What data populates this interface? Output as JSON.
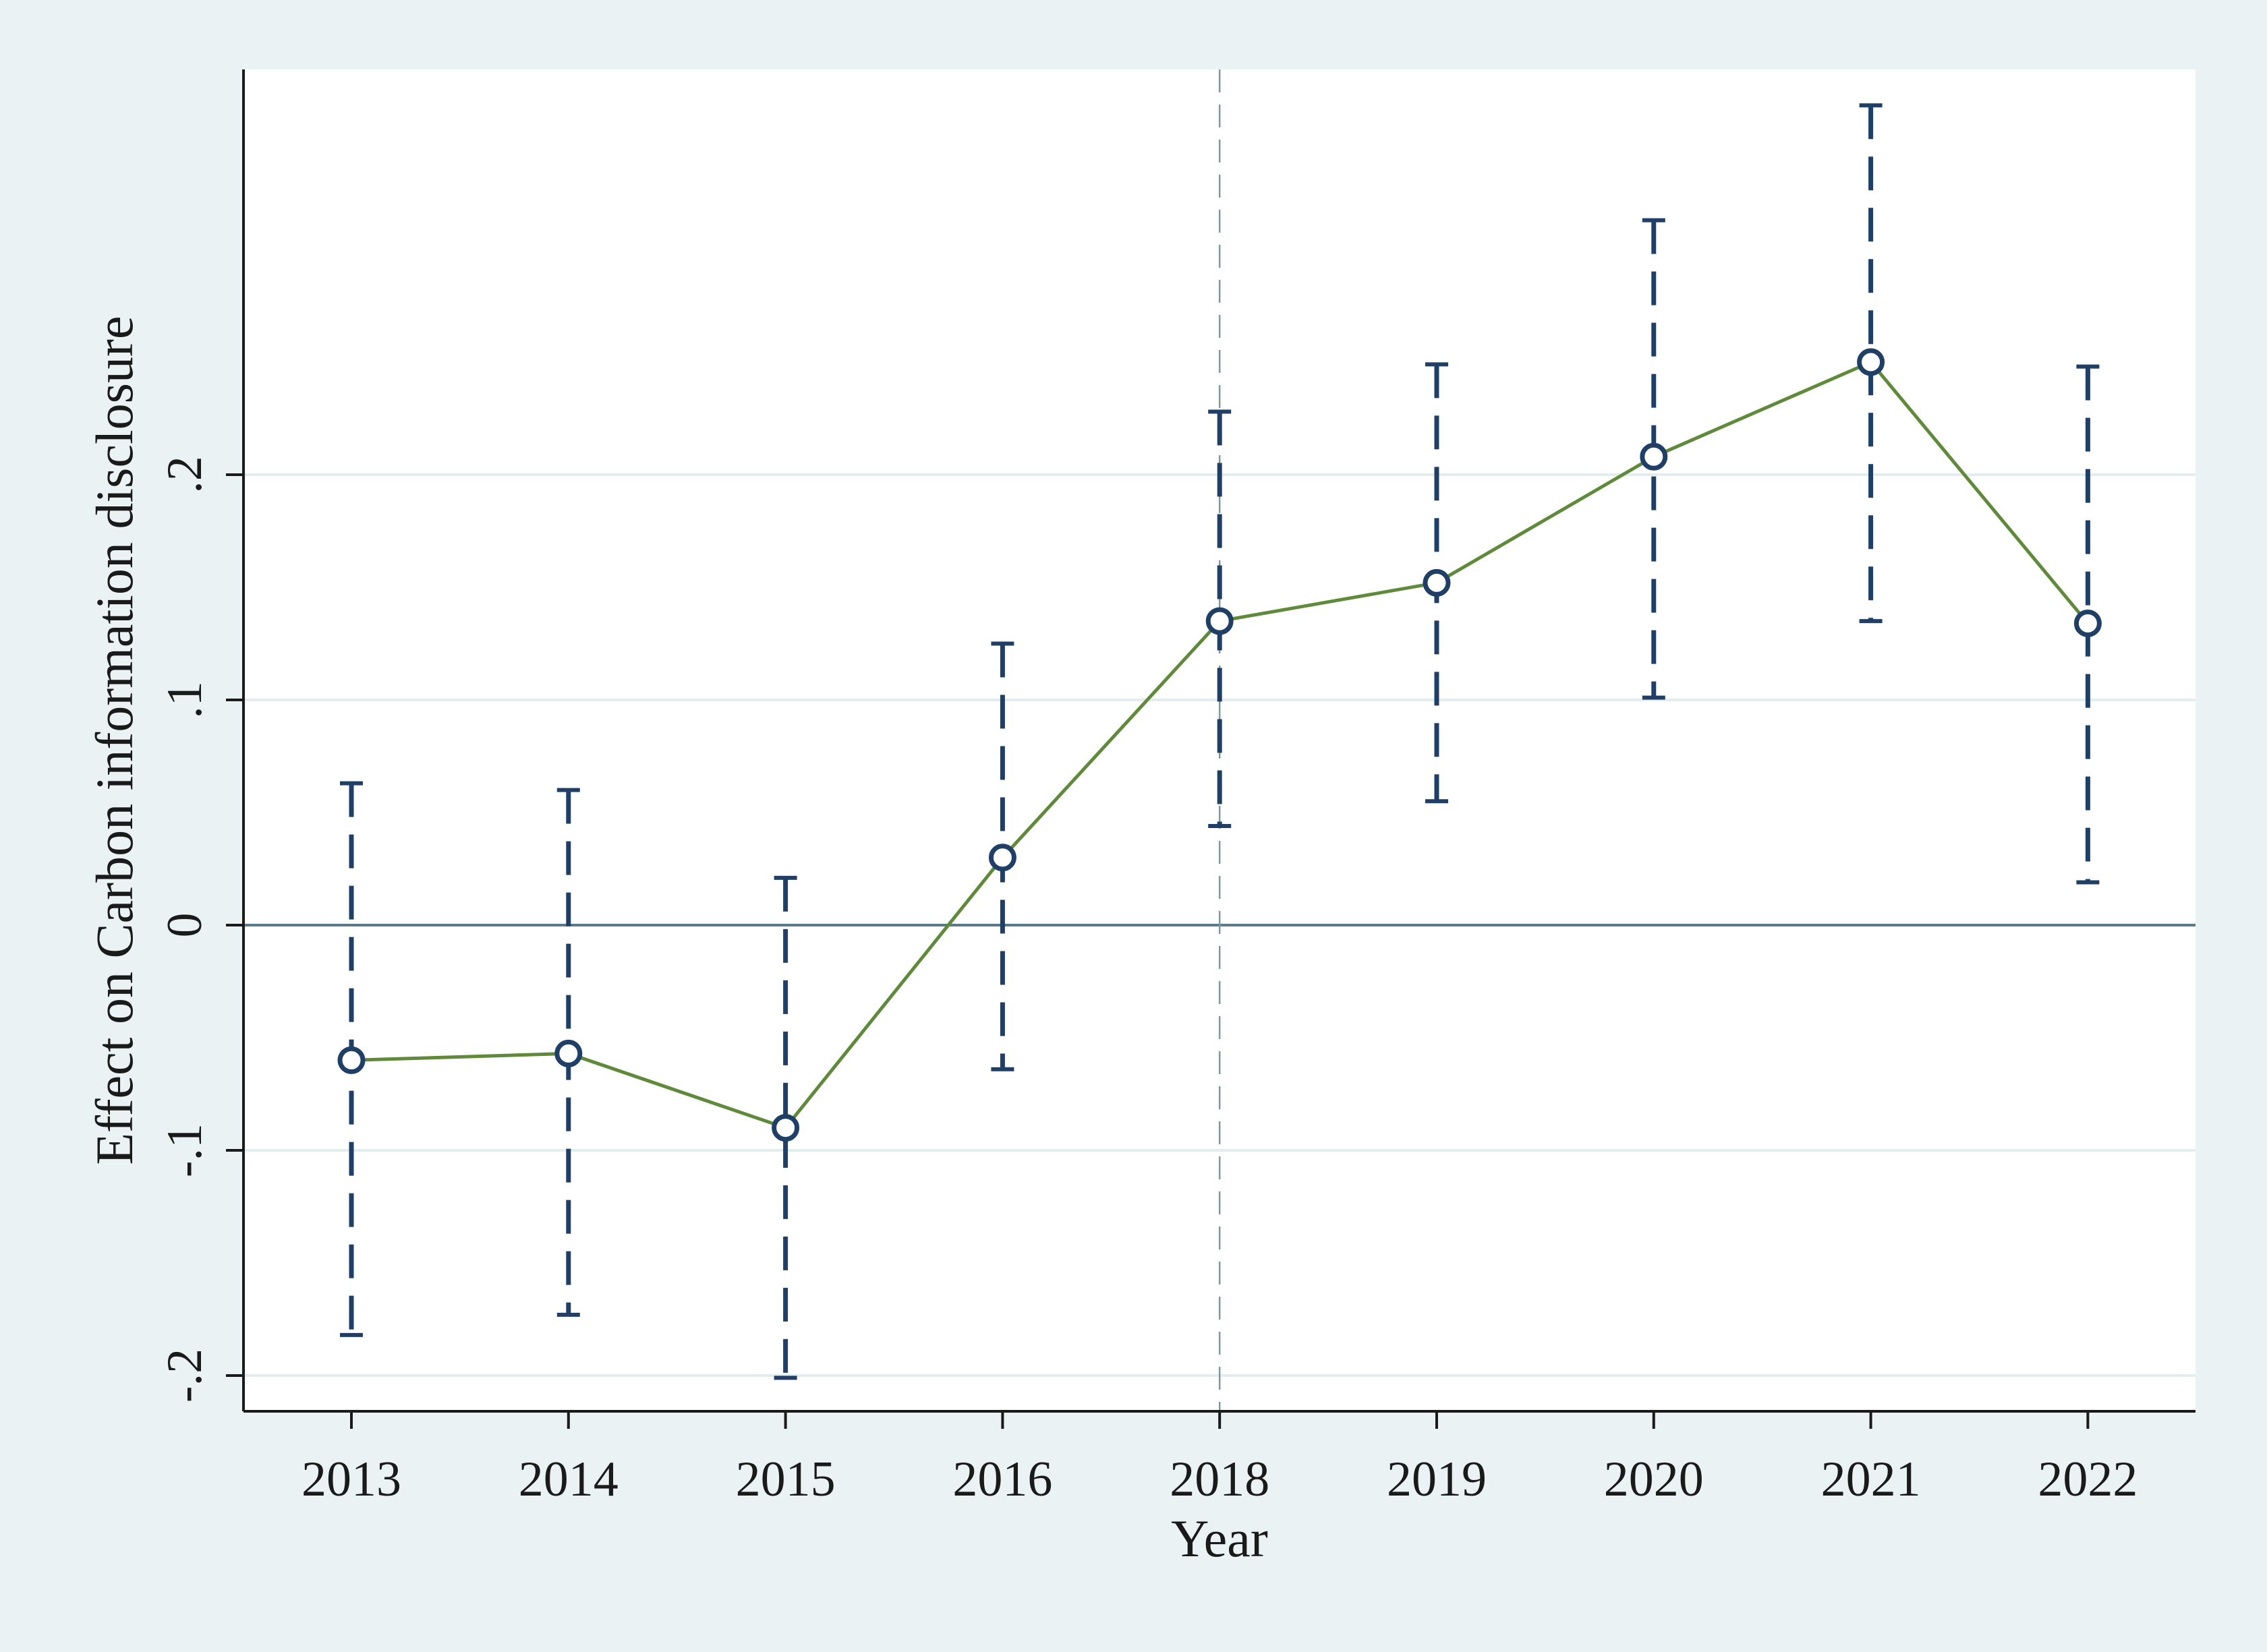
{
  "chart_data": {
    "type": "line",
    "xlabel": "Year",
    "ylabel": "Effect on Carbon information disclosure",
    "categories": [
      "2013",
      "2014",
      "2015",
      "2016",
      "2018",
      "2019",
      "2020",
      "2021",
      "2022"
    ],
    "ylim": [
      -0.215,
      0.38
    ],
    "yticks": [
      -0.2,
      -0.1,
      0,
      0.1,
      0.2
    ],
    "ytick_labels": [
      "-.2",
      "-.1",
      "0",
      ".1",
      ".2"
    ],
    "series": [
      {
        "estimates": [
          -0.06,
          -0.057,
          -0.09,
          0.03,
          0.135,
          0.152,
          0.208,
          0.25,
          0.134
        ],
        "ci_lower": [
          -0.182,
          -0.173,
          -0.201,
          -0.064,
          0.044,
          0.055,
          0.101,
          0.135,
          0.019
        ],
        "ci_upper": [
          0.063,
          0.06,
          0.021,
          0.125,
          0.228,
          0.249,
          0.313,
          0.364,
          0.248
        ]
      }
    ],
    "reference_lines": {
      "horizontal_at": 0,
      "vertical_at_category": "2018"
    },
    "grid": "horizontal",
    "legend": "none",
    "colors": {
      "outer_background": "#eaf2f3",
      "plot_background": "#ffffff",
      "line": "#5e8a3a",
      "markers": "#1f3f66",
      "ci_bars": "#1f3f66",
      "zero_line": "#5a7a8c",
      "gridlines": "#e3edef",
      "axis": "#1a1a1a"
    }
  }
}
